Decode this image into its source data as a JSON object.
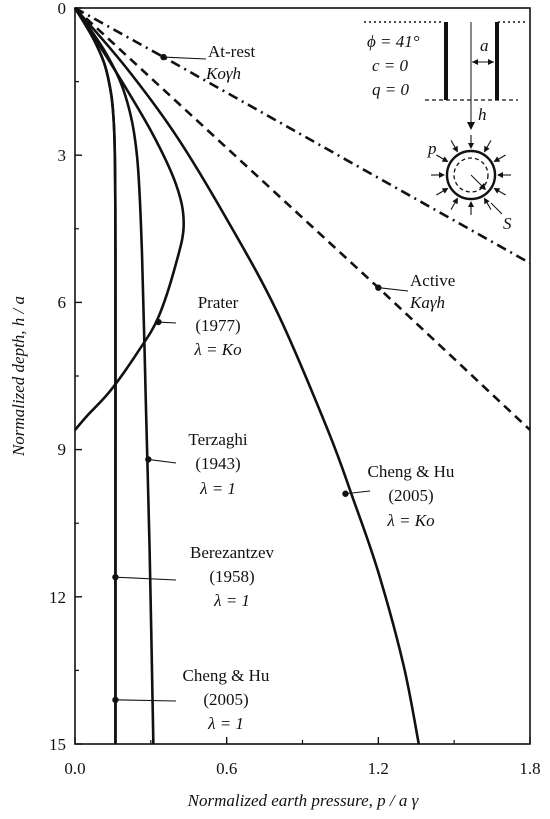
{
  "chart_data": {
    "type": "line",
    "xlabel": "Normalized earth pressure, p / a γ",
    "ylabel": "Normalized depth, h / a",
    "xlim": [
      0,
      1.8
    ],
    "ylim": [
      0,
      15
    ],
    "y_inverted": true,
    "x_ticks": [
      "0.0",
      "0.6",
      "1.2",
      "1.8"
    ],
    "y_ticks": [
      "0",
      "3",
      "6",
      "9",
      "12",
      "15"
    ],
    "grid": false,
    "series": [
      {
        "name": "At-rest Koγh",
        "style": "dash-dot",
        "points": [
          [
            0,
            0
          ],
          [
            0.35,
            1.0
          ],
          [
            1.8,
            5.2
          ]
        ]
      },
      {
        "name": "Active Kaγh",
        "style": "dashed",
        "points": [
          [
            0,
            0
          ],
          [
            1.2,
            5.7
          ],
          [
            1.8,
            8.6
          ]
        ]
      },
      {
        "name": "Prater (1977) λ = Ko",
        "style": "solid",
        "points": [
          [
            0,
            0
          ],
          [
            0.15,
            1.2
          ],
          [
            0.3,
            2.5
          ],
          [
            0.4,
            3.6
          ],
          [
            0.43,
            4.4
          ],
          [
            0.4,
            5.2
          ],
          [
            0.33,
            6.3
          ],
          [
            0.25,
            7.0
          ],
          [
            0.14,
            7.8
          ],
          [
            0.05,
            8.3
          ],
          [
            0,
            8.6
          ]
        ]
      },
      {
        "name": "Terzaghi (1943) λ = 1",
        "style": "solid",
        "points": [
          [
            0,
            0
          ],
          [
            0.12,
            0.9
          ],
          [
            0.2,
            1.8
          ],
          [
            0.245,
            3.0
          ],
          [
            0.265,
            5.0
          ],
          [
            0.28,
            8.0
          ],
          [
            0.295,
            11.0
          ],
          [
            0.31,
            15.0
          ]
        ]
      },
      {
        "name": "Berezantzev (1958) λ = 1",
        "style": "solid",
        "points": [
          [
            0,
            0
          ],
          [
            0.08,
            0.7
          ],
          [
            0.13,
            1.4
          ],
          [
            0.155,
            2.5
          ],
          [
            0.16,
            5.0
          ],
          [
            0.16,
            10.0
          ],
          [
            0.16,
            15.0
          ]
        ]
      },
      {
        "name": "Cheng & Hu (2005) λ = 1",
        "style": "solid",
        "points": [
          [
            0,
            0
          ],
          [
            0.08,
            0.7
          ],
          [
            0.13,
            1.4
          ],
          [
            0.155,
            2.5
          ],
          [
            0.16,
            5.0
          ],
          [
            0.16,
            10.0
          ],
          [
            0.16,
            15.0
          ]
        ]
      },
      {
        "name": "Cheng & Hu (2005) λ = Ko",
        "style": "solid",
        "points": [
          [
            0,
            0
          ],
          [
            0.2,
            1.2
          ],
          [
            0.4,
            2.6
          ],
          [
            0.6,
            4.3
          ],
          [
            0.8,
            6.2
          ],
          [
            1.0,
            8.6
          ],
          [
            1.1,
            10.0
          ],
          [
            1.2,
            11.5
          ],
          [
            1.3,
            13.4
          ],
          [
            1.36,
            15.0
          ]
        ]
      }
    ],
    "annotations": [
      {
        "lines": [
          "At-rest",
          "Koγh"
        ],
        "point": [
          0.35,
          1.0
        ]
      },
      {
        "lines": [
          "Active",
          "Kaγh"
        ],
        "point": [
          1.2,
          5.7
        ]
      },
      {
        "lines": [
          "Prater",
          "(1977)",
          "λ = Ko"
        ],
        "point": [
          0.33,
          6.4
        ]
      },
      {
        "lines": [
          "Terzaghi",
          "(1943)",
          "λ = 1"
        ],
        "point": [
          0.29,
          9.2
        ]
      },
      {
        "lines": [
          "Berezantzev",
          "(1958)",
          "λ = 1"
        ],
        "point": [
          0.16,
          11.6
        ]
      },
      {
        "lines": [
          "Cheng & Hu",
          "(2005)",
          "λ = 1"
        ],
        "point": [
          0.16,
          14.1
        ]
      },
      {
        "lines": [
          "Cheng & Hu",
          "(2005)",
          "λ = Ko"
        ],
        "point": [
          1.07,
          9.9
        ]
      }
    ],
    "inset": {
      "params": [
        "ϕ = 41°",
        "c = 0",
        "q = 0"
      ],
      "labels": {
        "radius": "a",
        "depth": "h",
        "pressure": "p",
        "settlement": "S"
      }
    }
  }
}
